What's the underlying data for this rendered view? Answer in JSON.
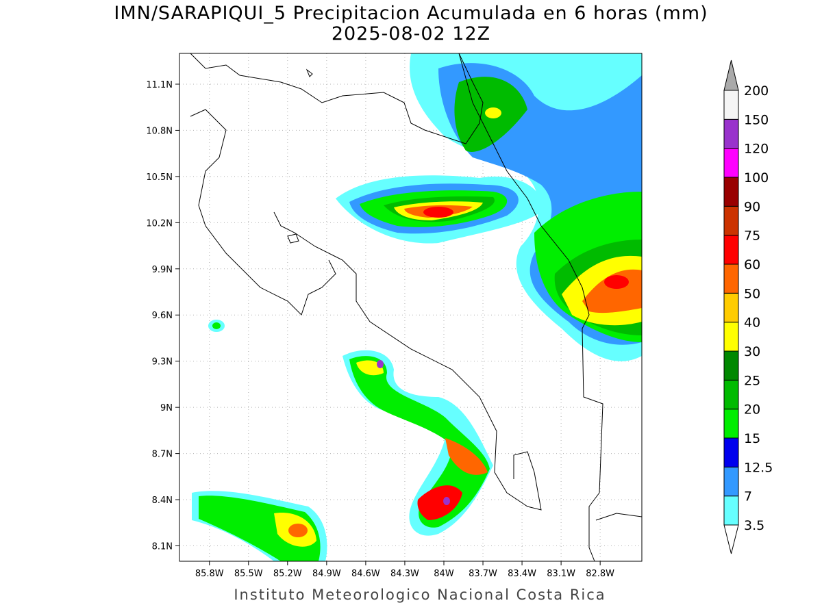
{
  "header": {
    "title": "IMN/SARAPIQUI_5 Precipitacion Acumulada en 6 horas (mm)",
    "subtitle": "2025-08-02 12Z"
  },
  "map": {
    "xlim": [
      -86.03,
      -82.48
    ],
    "ylim": [
      8.0,
      11.3
    ],
    "grid": true,
    "xticks": [
      {
        "value": -85.8,
        "label": "85.8W"
      },
      {
        "value": -85.5,
        "label": "85.5W"
      },
      {
        "value": -85.2,
        "label": "85.2W"
      },
      {
        "value": -84.9,
        "label": "84.9W"
      },
      {
        "value": -84.6,
        "label": "84.6W"
      },
      {
        "value": -84.3,
        "label": "84.3W"
      },
      {
        "value": -84.0,
        "label": "84W"
      },
      {
        "value": -83.7,
        "label": "83.7W"
      },
      {
        "value": -83.4,
        "label": "83.4W"
      },
      {
        "value": -83.1,
        "label": "83.1W"
      },
      {
        "value": -82.8,
        "label": "82.8W"
      }
    ],
    "yticks": [
      {
        "value": 11.1,
        "label": "11.1N"
      },
      {
        "value": 10.8,
        "label": "10.8N"
      },
      {
        "value": 10.5,
        "label": "10.5N"
      },
      {
        "value": 10.2,
        "label": "10.2N"
      },
      {
        "value": 9.9,
        "label": "9.9N"
      },
      {
        "value": 9.6,
        "label": "9.6N"
      },
      {
        "value": 9.3,
        "label": "9.3N"
      },
      {
        "value": 9.0,
        "label": "9N"
      },
      {
        "value": 8.7,
        "label": "8.7N"
      },
      {
        "value": 8.4,
        "label": "8.4N"
      },
      {
        "value": 8.1,
        "label": "8.1N"
      }
    ]
  },
  "colorbar": {
    "levels": [
      3.5,
      7,
      12.5,
      15,
      20,
      25,
      30,
      40,
      50,
      60,
      75,
      90,
      100,
      120,
      150,
      200
    ],
    "colors": [
      "#66ffff",
      "#3399ff",
      "#0000ee",
      "#00ee00",
      "#00bb00",
      "#008800",
      "#ffff00",
      "#ffcc00",
      "#ff6600",
      "#ff0000",
      "#cc3300",
      "#990000",
      "#ff00ff",
      "#9933cc",
      "#f5f5f5"
    ],
    "under_color": "#ffffff",
    "over_color": "#aaaaaa"
  },
  "footer": "Instituto Meteorologico Nacional Costa Rica"
}
